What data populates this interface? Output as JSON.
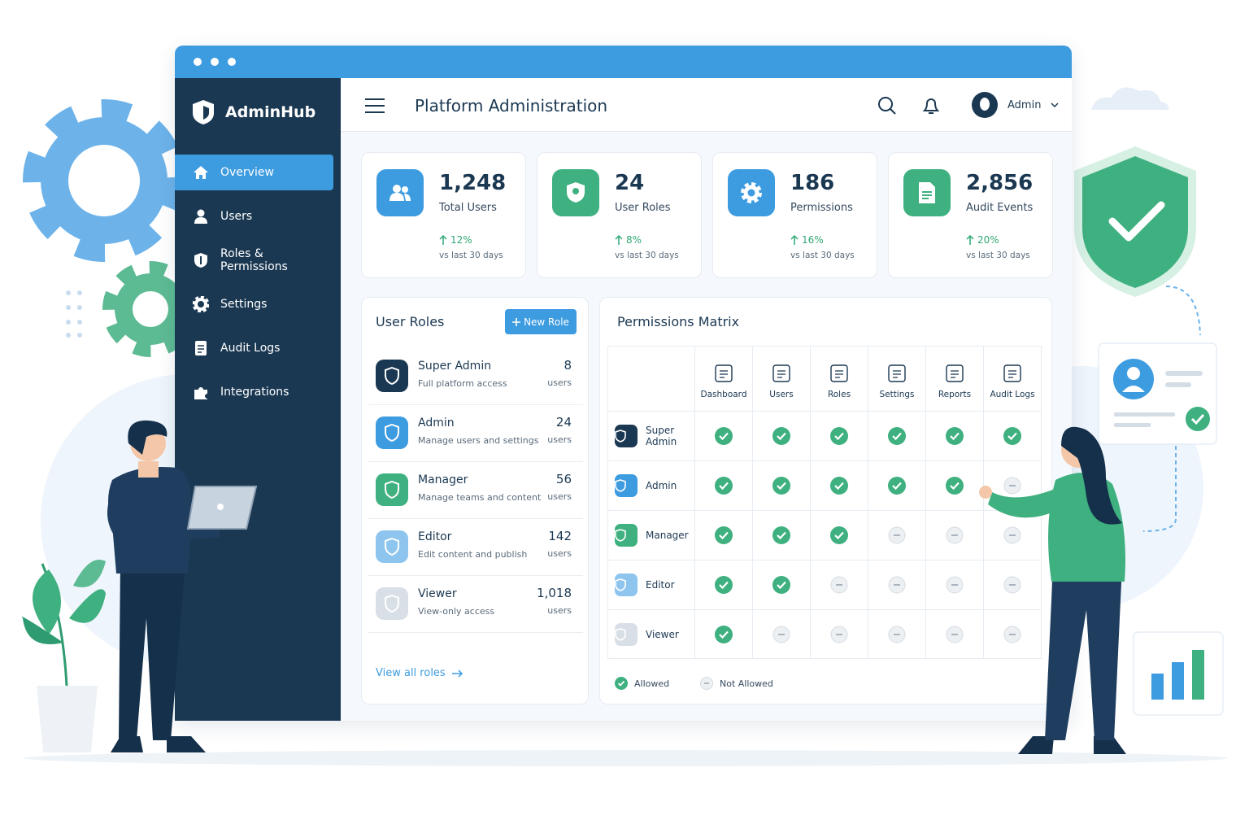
{
  "sidebar": {
    "brand": "AdminHub",
    "nav": [
      "Overview",
      "Users",
      "Roles & Permissions",
      "Settings",
      "Audit Logs",
      "Integrations"
    ]
  },
  "header": {
    "title": "Platform Administration",
    "user": "Admin"
  },
  "stats": [
    {
      "value": "1,248",
      "label": "Total Users",
      "change": "12%",
      "period": "vs last 30 days"
    },
    {
      "value": "24",
      "label": "User Roles",
      "change": "8%",
      "period": "vs last 30 days"
    },
    {
      "value": "186",
      "label": "Permissions",
      "change": "16%",
      "period": "vs last 30 days"
    },
    {
      "value": "2,856",
      "label": "Audit Events",
      "change": "20%",
      "period": "vs last 30 days"
    }
  ],
  "roles": {
    "title": "User Roles",
    "button": "New Role",
    "items": [
      {
        "name": "Super Admin",
        "desc": "Full platform access",
        "count": "8",
        "unit": "users"
      },
      {
        "name": "Admin",
        "desc": "Manage users and settings",
        "count": "24",
        "unit": "users"
      },
      {
        "name": "Manager",
        "desc": "Manage teams and content",
        "count": "56",
        "unit": "users"
      },
      {
        "name": "Editor",
        "desc": "Edit content and publish",
        "count": "142",
        "unit": "users"
      },
      {
        "name": "Viewer",
        "desc": "View-only access",
        "count": "1,018",
        "unit": "users"
      }
    ],
    "link": "View all roles"
  },
  "matrix": {
    "title": "Permissions Matrix",
    "columns": [
      "Dashboard",
      "Users",
      "Roles",
      "Settings",
      "Reports",
      "Audit Logs"
    ],
    "rows": [
      {
        "role": "Super Admin",
        "perms": [
          true,
          true,
          true,
          true,
          true,
          true
        ]
      },
      {
        "role": "Admin",
        "perms": [
          true,
          true,
          true,
          true,
          true,
          false
        ]
      },
      {
        "role": "Manager",
        "perms": [
          true,
          true,
          true,
          false,
          false,
          false
        ]
      },
      {
        "role": "Editor",
        "perms": [
          true,
          true,
          false,
          false,
          false,
          false
        ]
      },
      {
        "role": "Viewer",
        "perms": [
          true,
          false,
          false,
          false,
          false,
          false
        ]
      }
    ],
    "legend": {
      "allowed": "Allowed",
      "not_allowed": "Not Allowed"
    }
  }
}
